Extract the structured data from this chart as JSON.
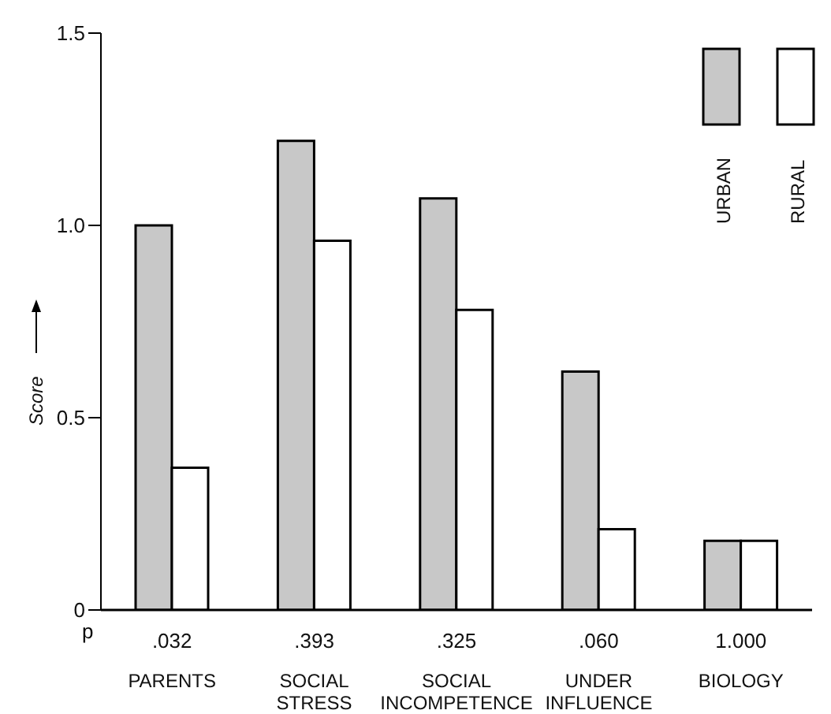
{
  "chart_data": {
    "type": "bar",
    "ylabel": "Score",
    "categories": [
      "PARENTS",
      "SOCIAL STRESS",
      "SOCIAL INCOMPETENCE",
      "UNDER INFLUENCE",
      "BIOLOGY"
    ],
    "series": [
      {
        "name": "URBAN",
        "color": "#c8c8c8",
        "values": [
          1.0,
          1.22,
          1.07,
          0.62,
          0.18
        ]
      },
      {
        "name": "RURAL",
        "color": "#ffffff",
        "values": [
          0.37,
          0.96,
          0.78,
          0.21,
          0.18
        ]
      }
    ],
    "ylim": [
      0,
      1.5
    ],
    "yticks": [
      0,
      0.5,
      {
        "value": 1,
        "label": "1.0"
      },
      1.5
    ],
    "grid": false,
    "legend": "top right",
    "annotations": [
      "p",
      ".032",
      ".393",
      ".325",
      ".060",
      "1.000"
    ]
  }
}
